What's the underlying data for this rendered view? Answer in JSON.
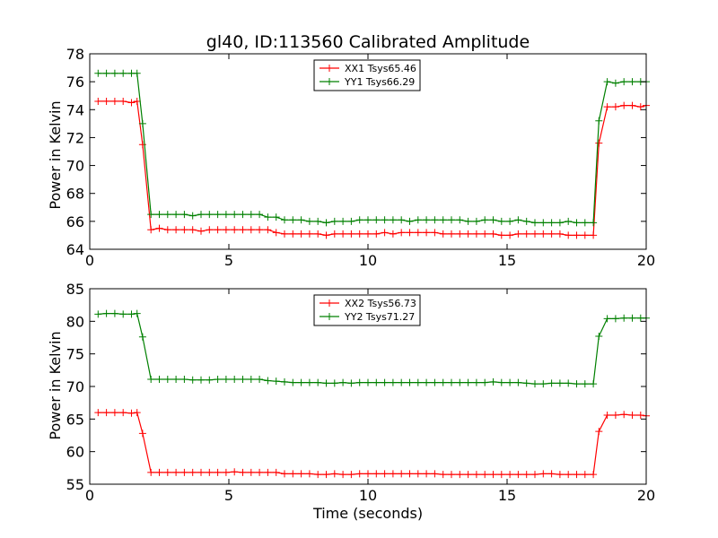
{
  "chart_data": [
    {
      "type": "line",
      "title": "gl40, ID:113560 Calibrated Amplitude",
      "xlabel": "",
      "ylabel": "Power in Kelvin",
      "xlim": [
        0,
        20
      ],
      "ylim": [
        64,
        78
      ],
      "x_ticks": [
        "0",
        "5",
        "10",
        "15",
        "20"
      ],
      "y_ticks": [
        "64",
        "66",
        "68",
        "70",
        "72",
        "74",
        "76",
        "78"
      ],
      "legend_position": "upper center",
      "grid": false,
      "x": [
        0.3,
        0.6,
        0.9,
        1.2,
        1.5,
        1.7,
        1.9,
        2.2,
        2.5,
        2.8,
        3.1,
        3.4,
        3.7,
        4.0,
        4.3,
        4.6,
        4.9,
        5.2,
        5.5,
        5.8,
        6.1,
        6.4,
        6.7,
        7.0,
        7.3,
        7.6,
        7.9,
        8.2,
        8.5,
        8.8,
        9.1,
        9.4,
        9.7,
        10.0,
        10.3,
        10.6,
        10.9,
        11.2,
        11.5,
        11.8,
        12.1,
        12.4,
        12.7,
        13.0,
        13.3,
        13.6,
        13.9,
        14.2,
        14.5,
        14.8,
        15.1,
        15.4,
        15.7,
        16.0,
        16.3,
        16.6,
        16.9,
        17.2,
        17.5,
        17.8,
        18.1,
        18.3,
        18.6,
        18.9,
        19.2,
        19.5,
        19.8,
        20.0
      ],
      "series": [
        {
          "name": "XX1 Tsys65.46",
          "color": "#ff0000",
          "values": [
            74.6,
            74.6,
            74.6,
            74.6,
            74.5,
            74.6,
            71.5,
            65.4,
            65.5,
            65.4,
            65.4,
            65.4,
            65.4,
            65.3,
            65.4,
            65.4,
            65.4,
            65.4,
            65.4,
            65.4,
            65.4,
            65.4,
            65.2,
            65.1,
            65.1,
            65.1,
            65.1,
            65.1,
            65.0,
            65.1,
            65.1,
            65.1,
            65.1,
            65.1,
            65.1,
            65.2,
            65.1,
            65.2,
            65.2,
            65.2,
            65.2,
            65.2,
            65.1,
            65.1,
            65.1,
            65.1,
            65.1,
            65.1,
            65.1,
            65.0,
            65.0,
            65.1,
            65.1,
            65.1,
            65.1,
            65.1,
            65.1,
            65.0,
            65.0,
            65.0,
            65.0,
            71.6,
            74.2,
            74.2,
            74.3,
            74.3,
            74.2,
            74.3
          ]
        },
        {
          "name": "YY1 Tsys66.29",
          "color": "#008000",
          "values": [
            76.6,
            76.6,
            76.6,
            76.6,
            76.6,
            76.6,
            73.0,
            66.5,
            66.5,
            66.5,
            66.5,
            66.5,
            66.4,
            66.5,
            66.5,
            66.5,
            66.5,
            66.5,
            66.5,
            66.5,
            66.5,
            66.3,
            66.3,
            66.1,
            66.1,
            66.1,
            66.0,
            66.0,
            65.9,
            66.0,
            66.0,
            66.0,
            66.1,
            66.1,
            66.1,
            66.1,
            66.1,
            66.1,
            66.0,
            66.1,
            66.1,
            66.1,
            66.1,
            66.1,
            66.1,
            66.0,
            66.0,
            66.1,
            66.1,
            66.0,
            66.0,
            66.1,
            66.0,
            65.9,
            65.9,
            65.9,
            65.9,
            66.0,
            65.9,
            65.9,
            65.9,
            73.2,
            76.0,
            75.9,
            76.0,
            76.0,
            76.0,
            76.0
          ]
        }
      ]
    },
    {
      "type": "line",
      "title": "",
      "xlabel": "Time (seconds)",
      "ylabel": "Power in Kelvin",
      "xlim": [
        0,
        20
      ],
      "ylim": [
        55,
        85
      ],
      "x_ticks": [
        "0",
        "5",
        "10",
        "15",
        "20"
      ],
      "y_ticks": [
        "55",
        "60",
        "65",
        "70",
        "75",
        "80",
        "85"
      ],
      "legend_position": "upper center",
      "grid": false,
      "x": [
        0.3,
        0.6,
        0.9,
        1.2,
        1.5,
        1.7,
        1.9,
        2.2,
        2.5,
        2.8,
        3.1,
        3.4,
        3.7,
        4.0,
        4.3,
        4.6,
        4.9,
        5.2,
        5.5,
        5.8,
        6.1,
        6.4,
        6.7,
        7.0,
        7.3,
        7.6,
        7.9,
        8.2,
        8.5,
        8.8,
        9.1,
        9.4,
        9.7,
        10.0,
        10.3,
        10.6,
        10.9,
        11.2,
        11.5,
        11.8,
        12.1,
        12.4,
        12.7,
        13.0,
        13.3,
        13.6,
        13.9,
        14.2,
        14.5,
        14.8,
        15.1,
        15.4,
        15.7,
        16.0,
        16.3,
        16.6,
        16.9,
        17.2,
        17.5,
        17.8,
        18.1,
        18.3,
        18.6,
        18.9,
        19.2,
        19.5,
        19.8,
        20.0
      ],
      "series": [
        {
          "name": "XX2 Tsys56.73",
          "color": "#ff0000",
          "values": [
            66.0,
            66.0,
            66.0,
            66.0,
            65.9,
            66.0,
            62.8,
            56.8,
            56.8,
            56.8,
            56.8,
            56.8,
            56.8,
            56.8,
            56.8,
            56.8,
            56.8,
            56.9,
            56.8,
            56.8,
            56.8,
            56.8,
            56.8,
            56.6,
            56.6,
            56.6,
            56.6,
            56.5,
            56.5,
            56.6,
            56.5,
            56.5,
            56.6,
            56.6,
            56.6,
            56.6,
            56.6,
            56.6,
            56.6,
            56.6,
            56.6,
            56.6,
            56.5,
            56.5,
            56.5,
            56.5,
            56.5,
            56.5,
            56.5,
            56.5,
            56.5,
            56.5,
            56.5,
            56.5,
            56.6,
            56.6,
            56.5,
            56.5,
            56.5,
            56.5,
            56.5,
            63.1,
            65.6,
            65.6,
            65.7,
            65.6,
            65.6,
            65.5
          ]
        },
        {
          "name": "YY2 Tsys71.27",
          "color": "#008000",
          "values": [
            81.1,
            81.2,
            81.2,
            81.1,
            81.1,
            81.2,
            77.6,
            71.1,
            71.1,
            71.1,
            71.1,
            71.1,
            71.0,
            71.0,
            71.0,
            71.1,
            71.1,
            71.1,
            71.1,
            71.1,
            71.1,
            70.9,
            70.8,
            70.7,
            70.6,
            70.6,
            70.6,
            70.6,
            70.5,
            70.5,
            70.6,
            70.5,
            70.6,
            70.6,
            70.6,
            70.6,
            70.6,
            70.6,
            70.6,
            70.6,
            70.6,
            70.6,
            70.6,
            70.6,
            70.6,
            70.6,
            70.6,
            70.6,
            70.7,
            70.6,
            70.6,
            70.6,
            70.5,
            70.4,
            70.4,
            70.5,
            70.5,
            70.5,
            70.4,
            70.4,
            70.4,
            77.7,
            80.4,
            80.4,
            80.5,
            80.5,
            80.5,
            80.5
          ]
        }
      ]
    }
  ]
}
